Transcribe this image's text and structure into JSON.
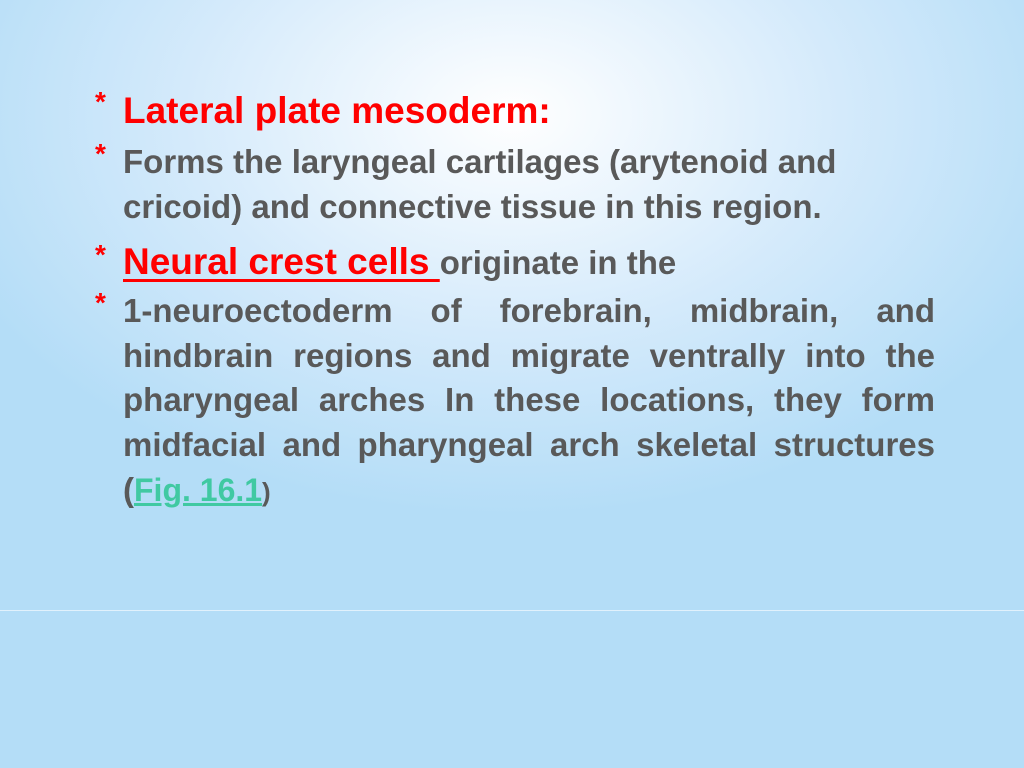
{
  "slide": {
    "background": {
      "gradient_center": "#ffffff",
      "gradient_mid": "#d4eafb",
      "gradient_edge": "#b4ddf7"
    },
    "bullet_marker": "*",
    "colors": {
      "heading_red": "#ff0000",
      "body_gray": "#595959",
      "link_teal": "#40c9a2",
      "asterisk": "#ff0000"
    },
    "typography": {
      "heading_fontsize_pt": 28,
      "body_fontsize_pt": 25,
      "font_family": "Trebuchet MS",
      "weight": "bold"
    },
    "items": [
      {
        "heading": "Lateral plate mesoderm:"
      },
      {
        "body": "Forms the laryngeal cartilages (arytenoid and cricoid) and connective tissue in this region."
      },
      {
        "heading_inline": "Neural crest cells ",
        "inline_tail": "originate in the"
      },
      {
        "body_justified_pre": "1-neuroectoderm of forebrain, midbrain, and hindbrain regions and migrate ventrally into the pharyngeal arches In these locations, they form midfacial and pharyngeal arch skeletal structures (",
        "fig_link": "Fig. 16.1",
        "body_justified_post": ")"
      }
    ]
  }
}
